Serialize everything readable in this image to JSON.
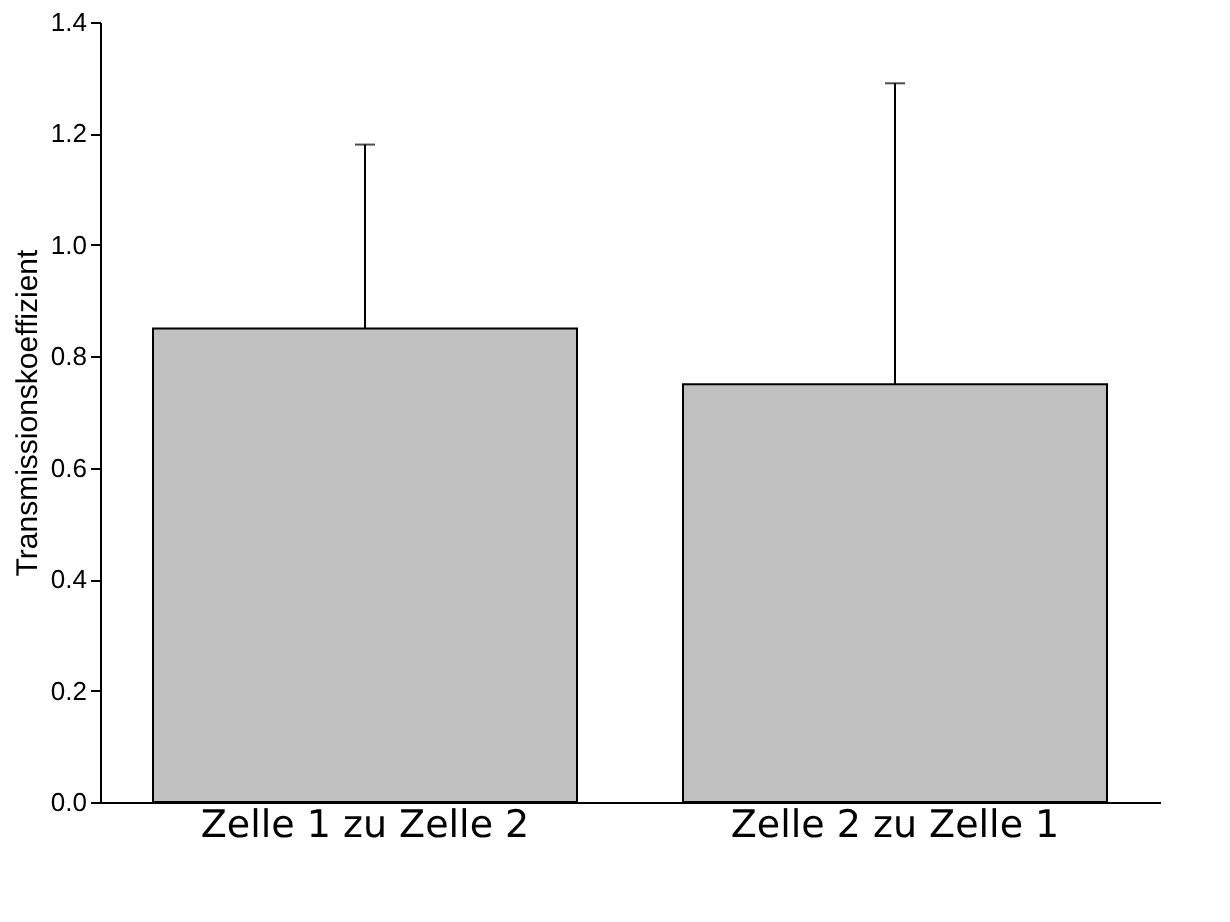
{
  "chart_data": {
    "type": "bar",
    "ylabel": "Transmissionskoeffizient",
    "categories": [
      "Zelle 1 zu Zelle 2",
      "Zelle 2 zu Zelle 1"
    ],
    "values": [
      0.85,
      0.75
    ],
    "errors": [
      [
        0.85,
        1.18
      ],
      [
        0.75,
        1.29
      ]
    ],
    "color": "#c0c0c0",
    "ylim": [
      0,
      1.4
    ],
    "yticks": [
      {
        "value": 0,
        "label": "0.0"
      },
      0.2,
      0.4,
      0.6,
      0.8,
      {
        "value": 1,
        "label": "1.0"
      },
      1.2,
      1.4
    ],
    "grid": false
  }
}
